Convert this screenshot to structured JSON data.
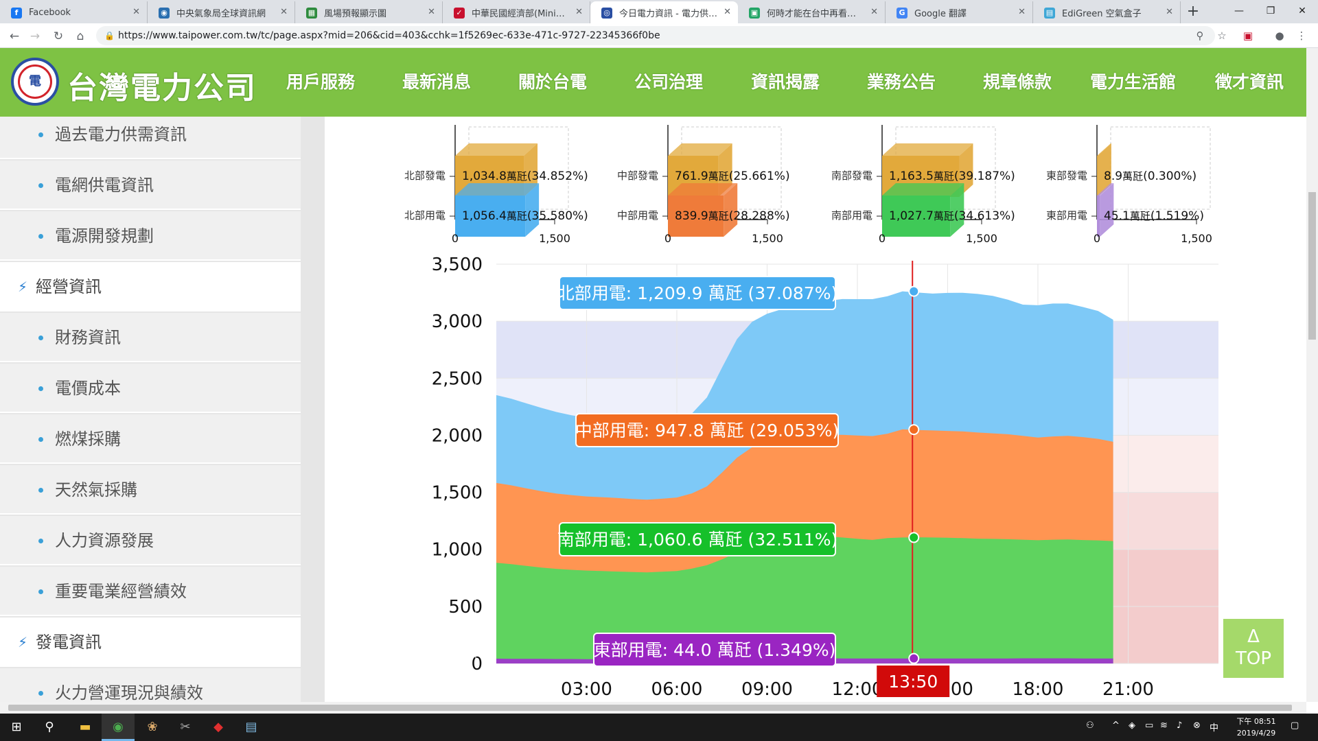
{
  "browser": {
    "tabs": [
      {
        "title": "Facebook",
        "icon": "facebook-icon",
        "color": "#1877f2",
        "glyph": "f"
      },
      {
        "title": "中央氣象局全球資訊網",
        "icon": "cwb-icon",
        "color": "#2a6fb0",
        "glyph": "◉"
      },
      {
        "title": "風場預報顯示圖",
        "icon": "map-icon",
        "color": "#2e8b3e",
        "glyph": "▦"
      },
      {
        "title": "中華民國經濟部(Ministry o",
        "icon": "moea-icon",
        "color": "#c8102e",
        "glyph": "✓"
      },
      {
        "title": "今日電力資訊 - 電力供需資",
        "icon": "taipower-icon",
        "color": "#2a4fa3",
        "glyph": "◎",
        "active": true
      },
      {
        "title": "何時才能在台中再看到這樣",
        "icon": "sheet-icon",
        "color": "#23a566",
        "glyph": "▣"
      },
      {
        "title": "Google 翻譯",
        "icon": "translate-icon",
        "color": "#4285f4",
        "glyph": "G"
      },
      {
        "title": "EdiGreen 空氣盒子",
        "icon": "edigreen-icon",
        "color": "#3fa7d6",
        "glyph": "▤"
      }
    ],
    "new_tab": "+",
    "window_controls": {
      "minimize": "—",
      "maximize": "❐",
      "close": "✕"
    },
    "url": "https://www.taipower.com.tw/tc/page.aspx?mid=206&cid=403&cchk=1f5269ec-633e-471c-9727-22345366f0be"
  },
  "site": {
    "brand": "台灣電力公司",
    "logo_glyph": "電",
    "nav": [
      "用戶服務",
      "最新消息",
      "關於台電",
      "公司治理",
      "資訊揭露",
      "業務公告",
      "規章條款",
      "電力生活館",
      "徵才資訊"
    ]
  },
  "sidebar": {
    "items": [
      {
        "label": "過去電力供需資訊",
        "type": "sub"
      },
      {
        "label": "電網供電資訊",
        "type": "sub"
      },
      {
        "label": "電源開發規劃",
        "type": "sub"
      },
      {
        "label": "經營資訊",
        "type": "group"
      },
      {
        "label": "財務資訊",
        "type": "sub"
      },
      {
        "label": "電價成本",
        "type": "sub"
      },
      {
        "label": "燃煤採購",
        "type": "sub"
      },
      {
        "label": "天然氣採購",
        "type": "sub"
      },
      {
        "label": "人力資源發展",
        "type": "sub"
      },
      {
        "label": "重要電業經營績效",
        "type": "sub"
      },
      {
        "label": "發電資訊",
        "type": "group"
      },
      {
        "label": "火力營運現況與績效",
        "type": "sub"
      }
    ]
  },
  "chart_data": [
    {
      "type": "bar",
      "regions": [
        {
          "gen_label": "北部發電",
          "gen_value": 1034.8,
          "gen_text": "1,034.8",
          "gen_pct": "(34.852%)",
          "use_label": "北部用電",
          "use_value": 1056.4,
          "use_text": "1,056.4",
          "use_pct": "(35.580%)",
          "gen_color": "#e2a93b",
          "use_color": "#49aef0"
        },
        {
          "gen_label": "中部發電",
          "gen_value": 761.9,
          "gen_text": "761.9",
          "gen_pct": "(25.661%)",
          "use_label": "中部用電",
          "use_value": 839.9,
          "use_text": "839.9",
          "use_pct": "(28.288%)",
          "gen_color": "#e2a93b",
          "use_color": "#ef7b3a"
        },
        {
          "gen_label": "南部發電",
          "gen_value": 1163.5,
          "gen_text": "1,163.5",
          "gen_pct": "(39.187%)",
          "use_label": "南部用電",
          "use_value": 1027.7,
          "use_text": "1,027.7",
          "use_pct": "(34.613%)",
          "gen_color": "#e2a93b",
          "use_color": "#3fc957"
        },
        {
          "gen_label": "東部發電",
          "gen_value": 8.9,
          "gen_text": "8.9",
          "gen_pct": "(0.300%)",
          "use_label": "東部用電",
          "use_value": 45.1,
          "use_text": "45.1",
          "use_pct": "(1.519%)",
          "gen_color": "#e2a93b",
          "use_color": "#b18fdb"
        }
      ],
      "unit": "萬瓩",
      "ticks": [
        "0",
        "1,500"
      ],
      "xlim": [
        0,
        1500
      ]
    },
    {
      "type": "area",
      "stacked": true,
      "ylim": [
        0,
        3500
      ],
      "yticks": [
        "0",
        "500",
        "1,000",
        "1,500",
        "2,000",
        "2,500",
        "3,000",
        "3,500"
      ],
      "xticks": [
        "03:00",
        "06:00",
        "09:00",
        "12:00",
        "15:00",
        "18:00",
        "21:00"
      ],
      "xlim": [
        0,
        24
      ],
      "cursor_time": "13:50",
      "cursor_x": 13.83,
      "x": [
        0,
        0.5,
        1,
        1.5,
        2,
        2.5,
        3,
        3.5,
        4,
        4.5,
        5,
        5.5,
        6,
        6.5,
        7,
        7.5,
        8,
        8.5,
        9,
        9.5,
        10,
        10.5,
        11,
        11.5,
        12,
        12.5,
        13,
        13.5,
        14,
        14.5,
        15,
        15.5,
        16,
        16.5,
        17,
        17.5,
        18,
        18.5,
        19,
        19.5,
        20,
        20.5
      ],
      "series": [
        {
          "name": "東部用電",
          "color": "#9b3fc6",
          "values": [
            42,
            41,
            40,
            40,
            39,
            39,
            38,
            38,
            38,
            38,
            38,
            39,
            40,
            41,
            42,
            43,
            44,
            45,
            46,
            46,
            46,
            46,
            45,
            44,
            43,
            43,
            44,
            44,
            44,
            44,
            44,
            44,
            44,
            44,
            44,
            45,
            45,
            45,
            45,
            44,
            44,
            43
          ]
        },
        {
          "name": "南部用電",
          "color": "#5fd35f",
          "values": [
            840,
            830,
            815,
            800,
            790,
            782,
            776,
            772,
            768,
            764,
            760,
            765,
            770,
            790,
            820,
            870,
            930,
            990,
            1030,
            1050,
            1060,
            1065,
            1068,
            1060,
            1050,
            1040,
            1055,
            1060,
            1062,
            1060,
            1058,
            1055,
            1050,
            1048,
            1045,
            1040,
            1035,
            1040,
            1042,
            1038,
            1035,
            1030
          ]
        },
        {
          "name": "中部用電",
          "color": "#ff9552",
          "values": [
            700,
            690,
            680,
            670,
            660,
            655,
            650,
            648,
            645,
            640,
            638,
            640,
            645,
            660,
            690,
            760,
            830,
            860,
            870,
            875,
            880,
            885,
            890,
            900,
            905,
            910,
            915,
            948,
            940,
            938,
            936,
            935,
            930,
            925,
            920,
            910,
            900,
            905,
            908,
            902,
            890,
            870
          ]
        },
        {
          "name": "北部用電",
          "color": "#7ec9f7",
          "values": [
            770,
            760,
            745,
            730,
            715,
            700,
            690,
            680,
            672,
            668,
            665,
            668,
            675,
            700,
            780,
            920,
            1040,
            1100,
            1120,
            1135,
            1150,
            1165,
            1175,
            1190,
            1195,
            1200,
            1205,
            1210,
            1205,
            1200,
            1210,
            1215,
            1215,
            1205,
            1180,
            1150,
            1160,
            1165,
            1160,
            1140,
            1120,
            1070
          ]
        }
      ],
      "tooltips": [
        {
          "text": "北部用電: 1,209.9 萬瓩 (37.087%)",
          "color": "#49aef0",
          "value": 3262
        },
        {
          "text": "中部用電: 947.8 萬瓩 (29.053%)",
          "color": "#f26c21",
          "value": 2050
        },
        {
          "text": "南部用電: 1,060.6 萬瓩 (32.511%)",
          "color": "#16c02a",
          "value": 1104
        },
        {
          "text": "東部用電: 44.0 萬瓩 (1.349%)",
          "color": "#9a25c2",
          "value": 44
        }
      ]
    }
  ],
  "top_button": {
    "arrow": "Δ",
    "label": "TOP"
  },
  "taskbar": {
    "time": "下午 08:51",
    "date": "2019/4/29"
  }
}
